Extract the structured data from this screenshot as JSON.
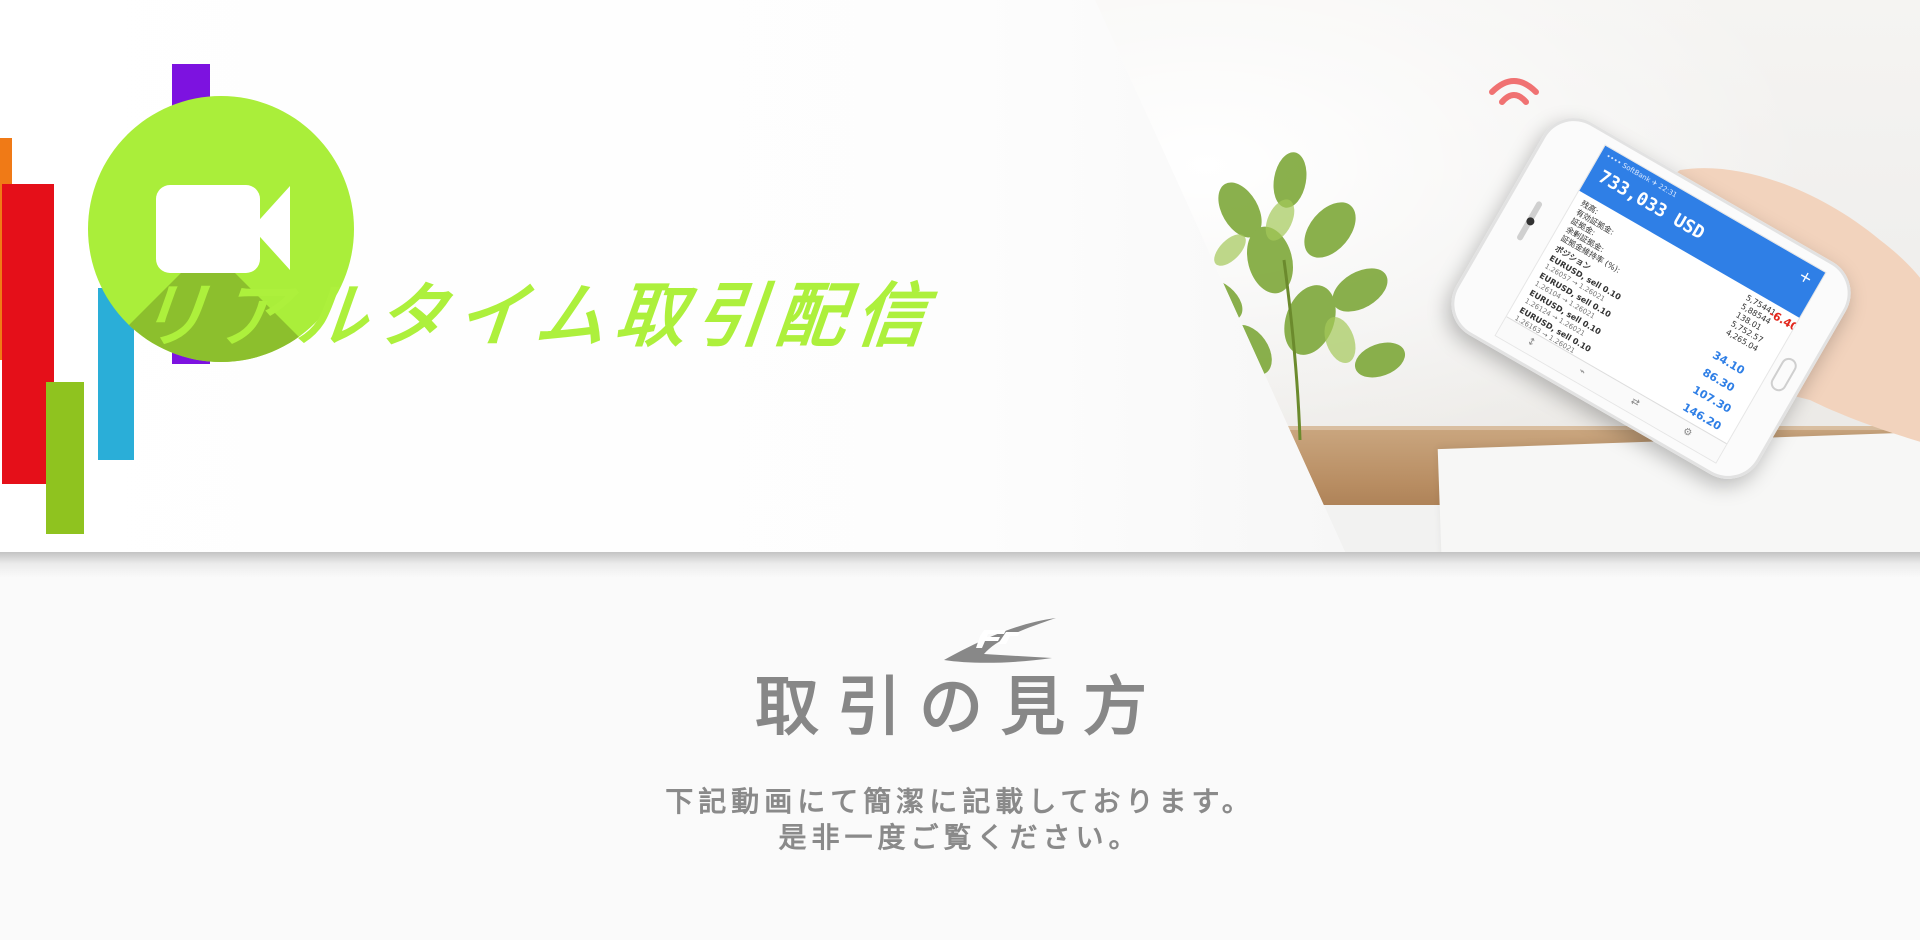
{
  "hero": {
    "title": "リアルタイム取引配信",
    "colors": {
      "accent_green": "#adf03c",
      "circle_green": "#aaee3a",
      "bar_orange": "#f07a16",
      "bar_red": "#e50f19",
      "bar_green": "#8fc31f",
      "bar_blue": "#2aaed8",
      "bar_purple": "#7d12e0"
    },
    "icons": [
      "video-camera-icon",
      "wifi-signal-icon"
    ],
    "phone_screen": {
      "status": "•••• SoftBank  ✈  22:31",
      "balance": "733,033 USD",
      "summary": [
        {
          "label": "残高:",
          "value": "5,75441"
        },
        {
          "label": "有効証拠金:",
          "value": "5,88544"
        },
        {
          "label": "証拠金:",
          "value": "138.01"
        },
        {
          "label": "余剰証拠金:",
          "value": "5,752.57"
        },
        {
          "label": "証拠金維持率 (%):",
          "value": "4,265.04"
        }
      ],
      "positions_label": "ポジション",
      "positions": [
        {
          "symbol": "EURUSD, sell 0.10",
          "price": "1.26057 → 1.26021",
          "value": "34.10"
        },
        {
          "symbol": "EURUSD, sell 0.10",
          "price": "1.26104 → 1.26021",
          "value": "86.30"
        },
        {
          "symbol": "EURUSD, sell 0.10",
          "price": "1.26124 → 1.26021",
          "value": "107.30"
        },
        {
          "symbol": "EURUSD, sell 0.10",
          "price": "1.26163 → 1.26021",
          "value": "146.20"
        }
      ],
      "extra_value": "-6.40"
    }
  },
  "section": {
    "title": "取引の見方",
    "description_line1": "下記動画にて簡潔に記載しております。",
    "description_line2": "是非一度ご覧ください。",
    "text_color": "#878787"
  }
}
